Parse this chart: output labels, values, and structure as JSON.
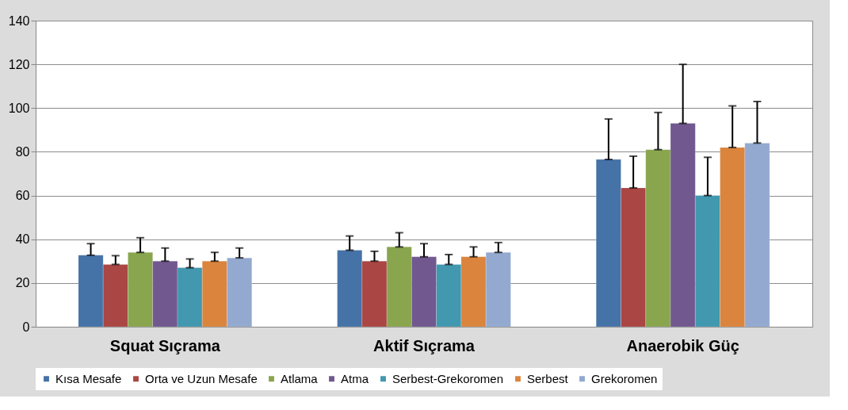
{
  "chart_data": {
    "type": "bar",
    "categories": [
      "Squat Sıçrama",
      "Aktif Sıçrama",
      "Anaerobik Güç"
    ],
    "series": [
      {
        "name": "Kısa Mesafe",
        "color": "#4572a7",
        "values": [
          32.7,
          35,
          76.5
        ],
        "errors": [
          [
            32.7,
            38
          ],
          [
            35,
            41.5
          ],
          [
            76.5,
            95
          ]
        ]
      },
      {
        "name": "Orta ve Uzun Mesafe",
        "color": "#aa4643",
        "values": [
          28.5,
          30,
          63.5
        ],
        "errors": [
          [
            28.5,
            32.5
          ],
          [
            30,
            34.5
          ],
          [
            63.5,
            78
          ]
        ]
      },
      {
        "name": "Atlama",
        "color": "#89a54e",
        "values": [
          34,
          36.5,
          81
        ],
        "errors": [
          [
            34,
            40.7
          ],
          [
            36.5,
            43
          ],
          [
            81,
            98
          ]
        ]
      },
      {
        "name": "Atma",
        "color": "#71588f",
        "values": [
          30,
          32,
          93
        ],
        "errors": [
          [
            30,
            36
          ],
          [
            32,
            38
          ],
          [
            93,
            120
          ]
        ]
      },
      {
        "name": "Serbest-Grekoromen",
        "color": "#4198af",
        "values": [
          27,
          28.5,
          60
        ],
        "errors": [
          [
            27,
            31
          ],
          [
            28.5,
            33
          ],
          [
            60,
            77.5
          ]
        ]
      },
      {
        "name": "Serbest",
        "color": "#db843d",
        "values": [
          30,
          32,
          82
        ],
        "errors": [
          [
            30,
            34
          ],
          [
            32,
            36.5
          ],
          [
            82,
            101
          ]
        ]
      },
      {
        "name": "Grekoromen",
        "color": "#93a9cf",
        "values": [
          31.5,
          34,
          84
        ],
        "errors": [
          [
            31.5,
            36
          ],
          [
            34,
            38.5
          ],
          [
            84,
            103
          ]
        ]
      }
    ],
    "ylim": [
      0,
      140
    ],
    "yticks": [
      0,
      20,
      40,
      60,
      80,
      100,
      120,
      140
    ],
    "grid": "y",
    "legend": "bottom"
  }
}
